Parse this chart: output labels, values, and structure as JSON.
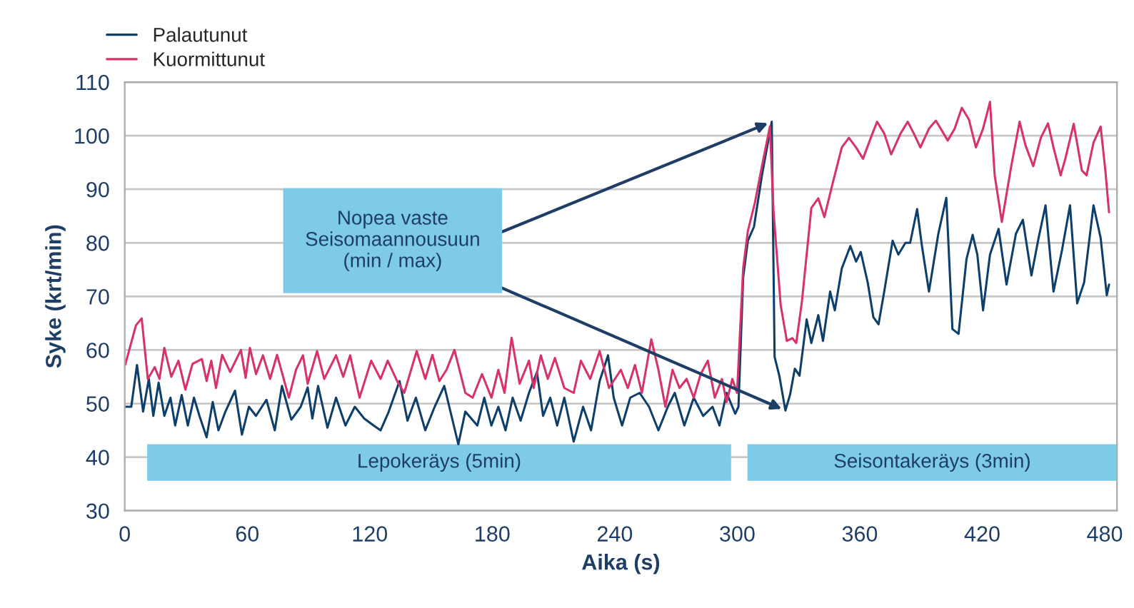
{
  "chart_data": {
    "type": "line",
    "xlabel": "Aika (s)",
    "ylabel": "Syke (krt/min)",
    "xlim": [
      0,
      486
    ],
    "xticks": [
      0,
      60,
      120,
      180,
      240,
      300,
      360,
      420,
      480
    ],
    "ylim": [
      30,
      110
    ],
    "yticks": [
      30,
      40,
      50,
      60,
      70,
      80,
      90,
      100,
      110
    ],
    "grid": "y",
    "legend": "top left",
    "marker": "none",
    "line_style": "solid",
    "series": [
      {
        "name": "Palautunut",
        "color": "#0e3f6b",
        "x": [
          0.2,
          3.2,
          6,
          9,
          11.8,
          14,
          16.6,
          19.4,
          22.4,
          24.7,
          27.9,
          30.9,
          33.9,
          36.6,
          40.1,
          43.1,
          45.9,
          49.3,
          54,
          57.4,
          60.8,
          64.3,
          69.4,
          73.5,
          77,
          81.6,
          86.2,
          89.6,
          91.9,
          94.7,
          99.3,
          103.5,
          108.1,
          112.7,
          117.3,
          121.9,
          125.3,
          129.3,
          134.6,
          138.5,
          142.6,
          147.2,
          151.8,
          156.5,
          163.4,
          166.8,
          172.7,
          176.1,
          179.6,
          183,
          186.5,
          190,
          193.9,
          198,
          201.9,
          204.9,
          208.4,
          211.8,
          215.3,
          219.9,
          224.5,
          228.4,
          232.6,
          236.7,
          239.5,
          243.6,
          247.6,
          252.2,
          256.8,
          261.4,
          266,
          269.4,
          274.1,
          278.7,
          283.3,
          287.9,
          291.3,
          294.8,
          299,
          300.6,
          302.9,
          305.2,
          308.2,
          312.1,
          316.9,
          318.3,
          320.6,
          323.6,
          325.9,
          328.2,
          330.5,
          334,
          336.3,
          339.7,
          342,
          345.5,
          347.8,
          351.2,
          355.4,
          358.2,
          360.5,
          363.9,
          366.7,
          369.2,
          372,
          376.1,
          378.9,
          382.4,
          384.7,
          388.1,
          390.4,
          393.9,
          398.5,
          402.4,
          405.4,
          408.4,
          412.3,
          415.3,
          417.6,
          420.4,
          423.8,
          428,
          431.9,
          436.5,
          439.9,
          444.1,
          447.6,
          451,
          454.9,
          459.1,
          463,
          466.5,
          469.9,
          474.5,
          478,
          481,
          482.1
        ],
        "values": [
          49.4,
          49.4,
          57.2,
          48.5,
          54.6,
          47.7,
          53.9,
          47.7,
          51.1,
          45.9,
          51.6,
          45.9,
          51.1,
          47.7,
          43.7,
          50.3,
          45,
          48.5,
          52.4,
          44.2,
          49.4,
          47.7,
          50.7,
          45,
          53.3,
          47,
          49.4,
          53,
          47.2,
          53.3,
          45.5,
          51.1,
          45.9,
          49.4,
          47.2,
          45.9,
          45,
          48.5,
          54.2,
          46.8,
          51.1,
          45,
          49.4,
          53.3,
          42.4,
          48.5,
          45.9,
          51.1,
          45.9,
          49.4,
          45,
          51.1,
          46.8,
          52,
          55.9,
          47.7,
          51.1,
          45.9,
          51.1,
          42.9,
          49.4,
          45,
          54.2,
          59,
          51.1,
          45.9,
          51.1,
          52,
          49.4,
          45,
          49.4,
          52,
          45.9,
          51.1,
          47.7,
          49.4,
          45.9,
          52,
          48.1,
          49.4,
          73.5,
          80.4,
          83,
          92.6,
          102.6,
          58.7,
          55.2,
          48.7,
          51.7,
          56.5,
          55.2,
          65.7,
          61.3,
          66.5,
          61.7,
          70.9,
          67.4,
          75.2,
          79.4,
          76.5,
          78.3,
          72.6,
          66.1,
          64.8,
          70.9,
          80.4,
          77.8,
          80,
          80,
          86.3,
          79.6,
          70.9,
          81.7,
          88.4,
          63.9,
          63,
          77,
          81.5,
          77.8,
          67.4,
          77.8,
          82.6,
          72.2,
          81.7,
          84.3,
          73.9,
          80.9,
          87,
          70.9,
          78.7,
          87,
          68.7,
          72.6,
          87,
          80.9,
          70.2,
          72.2
        ]
      },
      {
        "name": "Kuormittunut",
        "color": "#d6336c",
        "x": [
          0.2,
          5.5,
          8.3,
          11.3,
          14.7,
          17,
          19.4,
          22.8,
          26.3,
          29.7,
          33.2,
          37.8,
          40.1,
          42.4,
          44.7,
          47.7,
          51.6,
          56.9,
          59.2,
          61.3,
          64.3,
          67.7,
          71.2,
          74.6,
          80.4,
          83.9,
          87.3,
          89.6,
          94.2,
          97.7,
          103.5,
          107,
          110.4,
          115,
          120.7,
          125.3,
          128.8,
          133.4,
          136.9,
          143,
          147.2,
          150.7,
          154.1,
          157.6,
          161.5,
          166.8,
          170.4,
          175,
          179.6,
          183,
          186,
          189.5,
          193.4,
          198,
          200.3,
          203.8,
          207.2,
          210.7,
          215.3,
          219.9,
          223.4,
          228,
          232.6,
          237.2,
          243,
          246.4,
          249.9,
          253.3,
          257.9,
          261.4,
          264.8,
          268.3,
          271.7,
          275.2,
          278.7,
          282.1,
          285.6,
          289,
          292.5,
          294.8,
          297.6,
          299.9,
          302.9,
          305.2,
          308.6,
          312.1,
          316,
          317.8,
          321.3,
          324.3,
          327,
          328.9,
          331.7,
          336.3,
          339.7,
          342.7,
          346.6,
          351.2,
          354.7,
          358.2,
          361.6,
          366.2,
          368.5,
          372,
          375.4,
          380,
          383.5,
          386.5,
          389.7,
          393.9,
          397.3,
          403.1,
          406.5,
          410,
          413.5,
          416.9,
          420.4,
          423.8,
          426.1,
          429.6,
          434.2,
          438.3,
          441.1,
          445,
          448.7,
          452.2,
          454.9,
          458.4,
          460.7,
          464.8,
          468.8,
          471.1,
          474.5,
          478,
          480.3,
          482.1
        ],
        "values": [
          57.2,
          64.6,
          65.9,
          54.6,
          56.8,
          54.6,
          60.4,
          55,
          58,
          52.6,
          57.4,
          58.3,
          54.2,
          58,
          52.9,
          59.1,
          55.9,
          60,
          54.8,
          60.4,
          55.5,
          59,
          54.6,
          59.1,
          51.1,
          56.3,
          59,
          53.7,
          59.8,
          54.6,
          59,
          55,
          59,
          51.1,
          58,
          54.6,
          58,
          54.2,
          52,
          59.8,
          54.6,
          59.1,
          54.2,
          56.3,
          60,
          52,
          51.1,
          55.5,
          51.1,
          56.3,
          52,
          62.3,
          53.7,
          58,
          52.9,
          59,
          54.6,
          58.5,
          52.9,
          52,
          58,
          54.6,
          59.8,
          52.9,
          56.3,
          52.9,
          57.2,
          52,
          62,
          56.3,
          49.4,
          56.3,
          52.9,
          54.6,
          51.1,
          55.5,
          58,
          51.1,
          54.6,
          50.3,
          54.6,
          52,
          75.2,
          82.2,
          87.4,
          94.3,
          101.7,
          85.7,
          68.3,
          61.7,
          62.2,
          61.3,
          69.1,
          86.5,
          88.3,
          84.8,
          90.9,
          97.8,
          99.6,
          97.8,
          95.7,
          100.4,
          102.6,
          100.4,
          96.5,
          100.4,
          102.6,
          100.4,
          97.8,
          101.3,
          102.8,
          99.1,
          101.3,
          105.2,
          103,
          97.8,
          101.3,
          106.3,
          92.6,
          83.9,
          94.3,
          102.6,
          98.3,
          94.3,
          99.6,
          102.3,
          97.8,
          92.6,
          95.7,
          102.2,
          93.5,
          92.6,
          98.7,
          101.7,
          93.5,
          85.7
        ]
      }
    ],
    "annotations": [
      {
        "text": "Nopea vaste\nSeisomaannousuun\n(min / max)",
        "x": 316.9,
        "y": 102.6
      }
    ],
    "bands": [
      {
        "axis": "x",
        "from": 11,
        "to": 297,
        "label": "Lepokeräys (5min)",
        "color": "#7ecbe8"
      },
      {
        "axis": "x",
        "from": 305,
        "to": 486,
        "label": "Seisontakeräys (3min)",
        "color": "#7ecbe8"
      }
    ]
  }
}
